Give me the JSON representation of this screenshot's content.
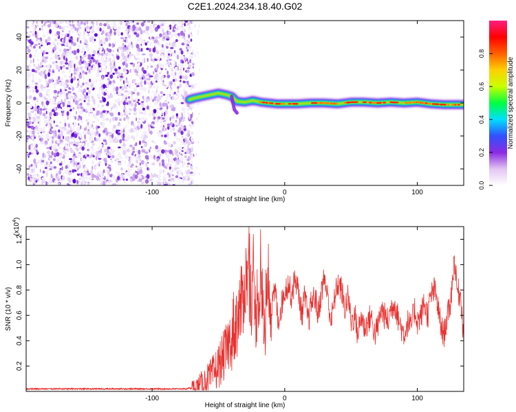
{
  "figure_title": "C2E1.2024.234.18.40.G02",
  "colors": {
    "snr_line": "#e8302e",
    "speckle_palette": [
      "#f4eefc",
      "#e4d2f7",
      "#c9a4f0",
      "#a56ee6",
      "#7d2fe0",
      "#5a10d6"
    ],
    "colormap_stops": [
      "#ffffff",
      "#e2c4f2",
      "#8a2be2",
      "#3050ff",
      "#00e0ff",
      "#00ff40",
      "#c8ff00",
      "#ffd000",
      "#ff6000",
      "#ff0000",
      "#ff2080"
    ]
  },
  "chart_data": [
    {
      "type": "heatmap",
      "xlabel": "Height of straight line (km)",
      "ylabel": "Frequency (Hz)",
      "xlim": [
        -195,
        135
      ],
      "ylim": [
        -50,
        50
      ],
      "xticks": [
        -100,
        0,
        100
      ],
      "xtick_labels": [
        "-100",
        "0",
        "100"
      ],
      "yticks": [
        -40,
        -20,
        0,
        20,
        40
      ],
      "ytick_labels": [
        "-40",
        "-20",
        "0",
        "20",
        "40"
      ],
      "noise_region_x": [
        -195,
        -72
      ],
      "signal_ridge": {
        "x": [
          -72,
          -68,
          -62,
          -56,
          -50,
          -44,
          -40,
          -36,
          -30,
          -24,
          -18,
          -12,
          -6,
          0,
          10,
          20,
          30,
          40,
          50,
          60,
          70,
          80,
          90,
          100,
          110,
          120,
          130,
          135
        ],
        "freq": [
          2,
          3,
          4,
          5,
          6,
          5,
          4,
          1,
          0.5,
          1.5,
          0.5,
          0,
          -0.5,
          -0.5,
          -0.5,
          0,
          0,
          -0.5,
          0.5,
          0.5,
          0,
          0.5,
          0,
          0.5,
          -0.5,
          -1,
          -1,
          -1
        ]
      },
      "colorbar": {
        "label": "Normalized spectral amplitude",
        "range": [
          0,
          1
        ],
        "ticks": [
          0.0,
          0.2,
          0.4,
          0.6,
          0.8
        ],
        "tick_labels": [
          "0.0",
          "0.2",
          "0.4",
          "0.6",
          "0.8"
        ]
      }
    },
    {
      "type": "line",
      "xlabel": "Height of straight line (km)",
      "ylabel": "SNR (10 * v/v)",
      "y_multiplier_label": "(x10",
      "y_multiplier_exp": "4",
      "y_multiplier_close": ")",
      "xlim": [
        -195,
        135
      ],
      "ylim": [
        0,
        1.3
      ],
      "xticks": [
        -100,
        0,
        100
      ],
      "xtick_labels": [
        "-100",
        "0",
        "100"
      ],
      "yticks": [
        0.2,
        0.4,
        0.6,
        0.8,
        1.0,
        1.2
      ],
      "ytick_labels": [
        "0.2",
        "0.4",
        "0.6",
        "0.8",
        "1.0",
        "1.2"
      ],
      "series": [
        {
          "x": [
            -195,
            -150,
            -100,
            -75,
            -65,
            -60,
            -55,
            -50,
            -45,
            -40,
            -35,
            -32,
            -30,
            -28,
            -25,
            -22,
            -20,
            -17,
            -15,
            -12,
            -10,
            -7,
            -5,
            -2,
            0,
            3,
            5,
            8,
            10,
            13,
            15,
            18,
            20,
            23,
            25,
            28,
            30,
            33,
            35,
            38,
            40,
            43,
            45,
            48,
            50,
            53,
            55,
            58,
            60,
            63,
            65,
            68,
            70,
            73,
            75,
            78,
            80,
            83,
            85,
            88,
            90,
            93,
            95,
            98,
            100,
            103,
            105,
            108,
            110,
            113,
            115,
            118,
            120,
            123,
            125,
            128,
            130,
            133,
            135
          ],
          "y": [
            0.02,
            0.02,
            0.02,
            0.02,
            0.04,
            0.08,
            0.12,
            0.2,
            0.3,
            0.45,
            0.6,
            0.7,
            0.85,
            0.95,
            0.75,
            0.6,
            0.8,
            0.7,
            0.5,
            0.9,
            0.65,
            0.8,
            0.55,
            0.7,
            0.8,
            0.85,
            0.75,
            0.9,
            0.8,
            0.6,
            0.75,
            0.55,
            0.7,
            0.75,
            0.6,
            0.8,
            0.9,
            0.7,
            0.55,
            0.75,
            0.85,
            0.8,
            0.65,
            0.75,
            0.55,
            0.6,
            0.45,
            0.6,
            0.5,
            0.55,
            0.6,
            0.45,
            0.5,
            0.65,
            0.6,
            0.55,
            0.65,
            0.7,
            0.6,
            0.5,
            0.45,
            0.55,
            0.5,
            0.65,
            0.55,
            0.6,
            0.7,
            0.6,
            0.75,
            0.8,
            0.7,
            0.5,
            0.45,
            0.6,
            0.7,
            1.05,
            0.8,
            0.75,
            0.4
          ]
        }
      ]
    }
  ]
}
